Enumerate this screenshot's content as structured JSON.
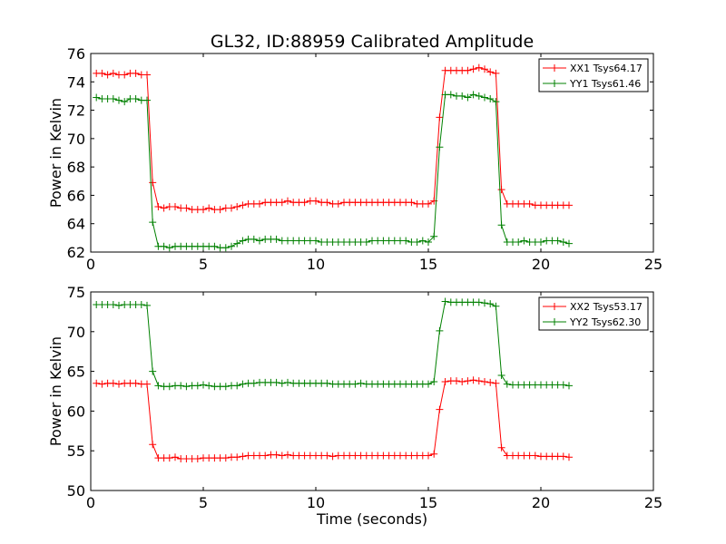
{
  "chart_data": [
    {
      "type": "line",
      "title": "GL32, ID:88959 Calibrated Amplitude",
      "xlabel": "",
      "ylabel": "Power in Kelvin",
      "xlim": [
        0,
        25
      ],
      "ylim": [
        62,
        76
      ],
      "xticks": [
        0,
        5,
        10,
        15,
        20,
        25
      ],
      "yticks": [
        62,
        64,
        66,
        68,
        70,
        72,
        74,
        76
      ],
      "grid": false,
      "legend_position": "top-right",
      "x": [
        0.25,
        0.5,
        0.75,
        1.0,
        1.25,
        1.5,
        1.75,
        2.0,
        2.25,
        2.5,
        2.75,
        3.0,
        3.25,
        3.5,
        3.75,
        4.0,
        4.25,
        4.5,
        4.75,
        5.0,
        5.25,
        5.5,
        5.75,
        6.0,
        6.25,
        6.5,
        6.75,
        7.0,
        7.25,
        7.5,
        7.75,
        8.0,
        8.25,
        8.5,
        8.75,
        9.0,
        9.25,
        9.5,
        9.75,
        10.0,
        10.25,
        10.5,
        10.75,
        11.0,
        11.25,
        11.5,
        11.75,
        12.0,
        12.25,
        12.5,
        12.75,
        13.0,
        13.25,
        13.5,
        13.75,
        14.0,
        14.25,
        14.5,
        14.75,
        15.0,
        15.25,
        15.5,
        15.75,
        16.0,
        16.25,
        16.5,
        16.75,
        17.0,
        17.25,
        17.5,
        17.75,
        18.0,
        18.25,
        18.5,
        18.75,
        19.0,
        19.25,
        19.5,
        19.75,
        20.0,
        20.25,
        20.5,
        20.75,
        21.0,
        21.25
      ],
      "series": [
        {
          "name": "XX1 Tsys64.17",
          "color": "#ff0000",
          "values": [
            74.6,
            74.6,
            74.5,
            74.6,
            74.5,
            74.5,
            74.6,
            74.6,
            74.5,
            74.5,
            66.9,
            65.2,
            65.1,
            65.2,
            65.2,
            65.1,
            65.1,
            65.0,
            65.0,
            65.0,
            65.1,
            65.0,
            65.0,
            65.1,
            65.1,
            65.2,
            65.3,
            65.4,
            65.4,
            65.4,
            65.5,
            65.5,
            65.5,
            65.5,
            65.6,
            65.5,
            65.5,
            65.5,
            65.6,
            65.6,
            65.5,
            65.5,
            65.4,
            65.4,
            65.5,
            65.5,
            65.5,
            65.5,
            65.5,
            65.5,
            65.5,
            65.5,
            65.5,
            65.5,
            65.5,
            65.5,
            65.5,
            65.4,
            65.4,
            65.4,
            65.6,
            71.5,
            74.8,
            74.8,
            74.8,
            74.8,
            74.8,
            74.9,
            75.0,
            74.9,
            74.7,
            74.6,
            66.4,
            65.4,
            65.4,
            65.4,
            65.4,
            65.4,
            65.3,
            65.3,
            65.3,
            65.3,
            65.3,
            65.3,
            65.3
          ]
        },
        {
          "name": "YY1 Tsys61.46",
          "color": "#008000",
          "values": [
            72.9,
            72.8,
            72.8,
            72.8,
            72.7,
            72.6,
            72.8,
            72.8,
            72.7,
            72.7,
            64.1,
            62.4,
            62.4,
            62.3,
            62.4,
            62.4,
            62.4,
            62.4,
            62.4,
            62.4,
            62.4,
            62.4,
            62.3,
            62.3,
            62.4,
            62.6,
            62.8,
            62.9,
            62.9,
            62.8,
            62.9,
            62.9,
            62.9,
            62.8,
            62.8,
            62.8,
            62.8,
            62.8,
            62.8,
            62.8,
            62.7,
            62.7,
            62.7,
            62.7,
            62.7,
            62.7,
            62.7,
            62.7,
            62.7,
            62.8,
            62.8,
            62.8,
            62.8,
            62.8,
            62.8,
            62.8,
            62.7,
            62.7,
            62.8,
            62.7,
            63.1,
            69.4,
            73.1,
            73.1,
            73.0,
            73.0,
            72.9,
            73.1,
            73.0,
            72.9,
            72.8,
            72.6,
            63.9,
            62.7,
            62.7,
            62.7,
            62.8,
            62.7,
            62.7,
            62.7,
            62.8,
            62.8,
            62.8,
            62.7,
            62.6
          ]
        }
      ]
    },
    {
      "type": "line",
      "title": "",
      "xlabel": "Time (seconds)",
      "ylabel": "Power in Kelvin",
      "xlim": [
        0,
        25
      ],
      "ylim": [
        50,
        75
      ],
      "xticks": [
        0,
        5,
        10,
        15,
        20,
        25
      ],
      "yticks": [
        50,
        55,
        60,
        65,
        70,
        75
      ],
      "grid": false,
      "legend_position": "top-right",
      "x": [
        0.25,
        0.5,
        0.75,
        1.0,
        1.25,
        1.5,
        1.75,
        2.0,
        2.25,
        2.5,
        2.75,
        3.0,
        3.25,
        3.5,
        3.75,
        4.0,
        4.25,
        4.5,
        4.75,
        5.0,
        5.25,
        5.5,
        5.75,
        6.0,
        6.25,
        6.5,
        6.75,
        7.0,
        7.25,
        7.5,
        7.75,
        8.0,
        8.25,
        8.5,
        8.75,
        9.0,
        9.25,
        9.5,
        9.75,
        10.0,
        10.25,
        10.5,
        10.75,
        11.0,
        11.25,
        11.5,
        11.75,
        12.0,
        12.25,
        12.5,
        12.75,
        13.0,
        13.25,
        13.5,
        13.75,
        14.0,
        14.25,
        14.5,
        14.75,
        15.0,
        15.25,
        15.5,
        15.75,
        16.0,
        16.25,
        16.5,
        16.75,
        17.0,
        17.25,
        17.5,
        17.75,
        18.0,
        18.25,
        18.5,
        18.75,
        19.0,
        19.25,
        19.5,
        19.75,
        20.0,
        20.25,
        20.5,
        20.75,
        21.0,
        21.25
      ],
      "series": [
        {
          "name": "XX2 Tsys53.17",
          "color": "#ff0000",
          "values": [
            63.5,
            63.4,
            63.5,
            63.5,
            63.4,
            63.5,
            63.5,
            63.5,
            63.4,
            63.4,
            55.8,
            54.1,
            54.1,
            54.1,
            54.2,
            54.0,
            54.0,
            54.0,
            54.0,
            54.1,
            54.1,
            54.1,
            54.1,
            54.1,
            54.2,
            54.2,
            54.3,
            54.4,
            54.4,
            54.4,
            54.4,
            54.5,
            54.5,
            54.4,
            54.5,
            54.4,
            54.4,
            54.4,
            54.4,
            54.4,
            54.4,
            54.4,
            54.3,
            54.4,
            54.4,
            54.4,
            54.4,
            54.4,
            54.4,
            54.4,
            54.4,
            54.4,
            54.4,
            54.4,
            54.4,
            54.4,
            54.4,
            54.4,
            54.4,
            54.4,
            54.6,
            60.2,
            63.7,
            63.8,
            63.8,
            63.7,
            63.8,
            63.9,
            63.8,
            63.7,
            63.6,
            63.5,
            55.4,
            54.4,
            54.4,
            54.4,
            54.4,
            54.4,
            54.4,
            54.3,
            54.3,
            54.3,
            54.3,
            54.3,
            54.2
          ]
        },
        {
          "name": "YY2 Tsys62.30",
          "color": "#008000",
          "values": [
            73.4,
            73.4,
            73.4,
            73.4,
            73.3,
            73.4,
            73.4,
            73.4,
            73.4,
            73.3,
            65.0,
            63.2,
            63.1,
            63.1,
            63.2,
            63.2,
            63.1,
            63.2,
            63.2,
            63.3,
            63.2,
            63.1,
            63.1,
            63.1,
            63.2,
            63.2,
            63.4,
            63.5,
            63.5,
            63.6,
            63.6,
            63.6,
            63.6,
            63.5,
            63.6,
            63.5,
            63.5,
            63.5,
            63.5,
            63.5,
            63.5,
            63.5,
            63.4,
            63.4,
            63.4,
            63.4,
            63.4,
            63.5,
            63.4,
            63.4,
            63.4,
            63.4,
            63.4,
            63.4,
            63.4,
            63.4,
            63.4,
            63.4,
            63.4,
            63.4,
            63.7,
            70.1,
            73.8,
            73.7,
            73.7,
            73.7,
            73.7,
            73.7,
            73.7,
            73.6,
            73.5,
            73.2,
            64.5,
            63.4,
            63.3,
            63.3,
            63.3,
            63.3,
            63.3,
            63.3,
            63.3,
            63.3,
            63.3,
            63.3,
            63.2
          ]
        }
      ]
    }
  ]
}
